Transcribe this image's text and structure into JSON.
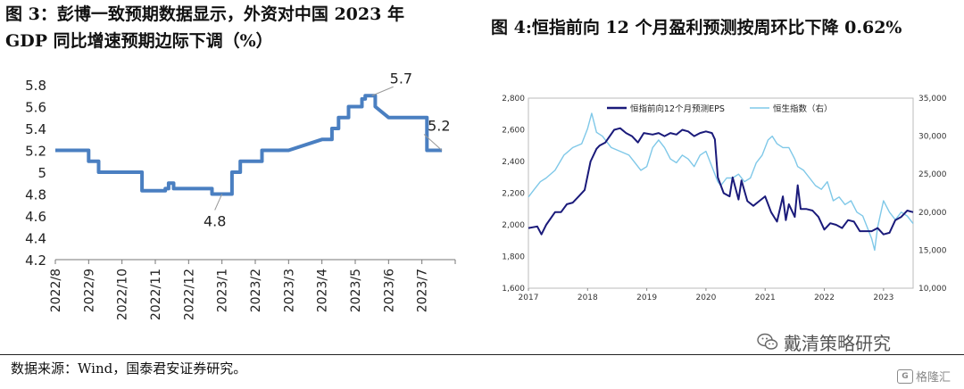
{
  "titles": {
    "fig3_line1": "图 3：彭博一致预期数据显示，外资对中国 2023 年",
    "fig3_line2": "GDP 同比增速预期边际下调（%）",
    "fig4": "图 4:恒指前向 12 个月盈利预测按周环比下降 0.62%"
  },
  "source": "数据来源：Wind，国泰君安证券研究。",
  "watermark": {
    "text": "戴清策略研究",
    "icon": "wechat-icon"
  },
  "logo": {
    "text": "格隆汇",
    "icon": "logo-mark"
  },
  "chart_data": [
    {
      "type": "line",
      "id": "fig3",
      "color": "#4a7fc1",
      "ylim": [
        4.2,
        5.8
      ],
      "yticks": [
        "4.2",
        "4.4",
        "4.6",
        "4.8",
        "5",
        "5.2",
        "5.4",
        "5.6",
        "5.8"
      ],
      "xticks": [
        "2022/8",
        "2022/9",
        "2022/10",
        "2022/11",
        "2022/12",
        "2023/1",
        "2023/2",
        "2023/3",
        "2023/4",
        "2023/5",
        "2023/6",
        "2023/7"
      ],
      "x": [
        0.0,
        1.0,
        1.0,
        1.15,
        1.15,
        1.3,
        1.3,
        1.4,
        1.4,
        2.0,
        2.6,
        2.6,
        3.0,
        3.3,
        3.3,
        3.4,
        3.4,
        3.55,
        3.55,
        3.7,
        3.7,
        4.0,
        4.7,
        4.7,
        4.85,
        4.85,
        5.0,
        5.3,
        5.3,
        5.55,
        5.55,
        6.0,
        6.2,
        6.2,
        7.0,
        8.0,
        8.1,
        8.1,
        8.3,
        8.3,
        8.5,
        8.5,
        8.8,
        8.8,
        9.0,
        9.2,
        9.2,
        9.3,
        9.3,
        9.5,
        9.6,
        9.6,
        10.0,
        11.0,
        11.0,
        11.15,
        11.15,
        11.6
      ],
      "values": [
        5.2,
        5.2,
        5.1,
        5.1,
        5.1,
        5.1,
        5.0,
        5.0,
        5.0,
        5.0,
        5.0,
        4.83,
        4.83,
        4.83,
        4.85,
        4.85,
        4.9,
        4.9,
        4.85,
        4.85,
        4.85,
        4.85,
        4.85,
        4.8,
        4.8,
        4.8,
        4.8,
        4.8,
        5.0,
        5.0,
        5.1,
        5.1,
        5.1,
        5.2,
        5.2,
        5.3,
        5.3,
        5.3,
        5.3,
        5.4,
        5.4,
        5.5,
        5.5,
        5.6,
        5.6,
        5.6,
        5.67,
        5.67,
        5.7,
        5.7,
        5.7,
        5.6,
        5.5,
        5.5,
        5.5,
        5.5,
        5.2,
        5.2
      ],
      "annotations": [
        {
          "label": "5.7",
          "x": 9.5,
          "y": 5.7
        },
        {
          "label": "5.2",
          "x": 11.6,
          "y": 5.2
        },
        {
          "label": "4.8",
          "x": 5.0,
          "y": 4.8
        }
      ]
    },
    {
      "type": "line",
      "id": "fig4",
      "xticks": [
        "2017",
        "2018",
        "2019",
        "2020",
        "2021",
        "2022",
        "2023"
      ],
      "xlim": [
        2017,
        2023.5
      ],
      "y_left": {
        "lim": [
          1600,
          2800
        ],
        "ticks": [
          "1,600",
          "1,800",
          "2,000",
          "2,200",
          "2,400",
          "2,600",
          "2,800"
        ]
      },
      "y_right": {
        "lim": [
          10000,
          35000
        ],
        "ticks": [
          "10,000",
          "15,000",
          "20,000",
          "25,000",
          "30,000",
          "35,000"
        ]
      },
      "series": [
        {
          "name": "恒指前向12个月预测EPS",
          "axis": "left",
          "color": "#1a1a7a",
          "x": [
            2017.0,
            2017.15,
            2017.22,
            2017.3,
            2017.45,
            2017.55,
            2017.65,
            2017.75,
            2017.85,
            2017.95,
            2018.05,
            2018.15,
            2018.2,
            2018.3,
            2018.45,
            2018.55,
            2018.65,
            2018.75,
            2018.85,
            2018.95,
            2019.1,
            2019.2,
            2019.3,
            2019.4,
            2019.5,
            2019.6,
            2019.7,
            2019.8,
            2019.9,
            2020.0,
            2020.1,
            2020.15,
            2020.2,
            2020.25,
            2020.3,
            2020.4,
            2020.45,
            2020.55,
            2020.6,
            2020.7,
            2020.8,
            2020.9,
            2021.0,
            2021.1,
            2021.15,
            2021.2,
            2021.3,
            2021.35,
            2021.4,
            2021.5,
            2021.55,
            2021.6,
            2021.7,
            2021.8,
            2021.9,
            2022.0,
            2022.1,
            2022.2,
            2022.3,
            2022.4,
            2022.5,
            2022.6,
            2022.7,
            2022.8,
            2022.9,
            2023.0,
            2023.1,
            2023.2,
            2023.3,
            2023.4,
            2023.5
          ],
          "values": [
            1980,
            1990,
            1940,
            2000,
            2080,
            2080,
            2130,
            2140,
            2180,
            2220,
            2400,
            2480,
            2500,
            2520,
            2600,
            2610,
            2580,
            2560,
            2520,
            2580,
            2570,
            2580,
            2560,
            2580,
            2570,
            2600,
            2590,
            2560,
            2580,
            2590,
            2580,
            2540,
            2300,
            2250,
            2200,
            2180,
            2300,
            2160,
            2280,
            2150,
            2120,
            2150,
            2180,
            2080,
            2050,
            2020,
            2180,
            2030,
            2130,
            2050,
            2250,
            2100,
            2100,
            2090,
            2050,
            1970,
            2010,
            2000,
            1980,
            2030,
            2020,
            1960,
            1960,
            1960,
            1980,
            1940,
            1950,
            2030,
            2050,
            2090,
            2080
          ]
        },
        {
          "name": "恒生指数（右）",
          "axis": "right",
          "color": "#7fc8e8",
          "x": [
            2017.0,
            2017.1,
            2017.2,
            2017.3,
            2017.45,
            2017.6,
            2017.75,
            2017.9,
            2018.0,
            2018.07,
            2018.15,
            2018.25,
            2018.4,
            2018.55,
            2018.7,
            2018.8,
            2018.9,
            2019.0,
            2019.1,
            2019.2,
            2019.3,
            2019.4,
            2019.5,
            2019.6,
            2019.7,
            2019.8,
            2019.9,
            2020.0,
            2020.1,
            2020.2,
            2020.25,
            2020.35,
            2020.45,
            2020.55,
            2020.65,
            2020.75,
            2020.85,
            2020.95,
            2021.05,
            2021.12,
            2021.2,
            2021.3,
            2021.4,
            2021.5,
            2021.55,
            2021.65,
            2021.75,
            2021.85,
            2021.95,
            2022.05,
            2022.15,
            2022.25,
            2022.35,
            2022.45,
            2022.55,
            2022.65,
            2022.75,
            2022.8,
            2022.85,
            2022.9,
            2023.0,
            2023.1,
            2023.2,
            2023.3,
            2023.4,
            2023.5
          ],
          "values": [
            22000,
            23000,
            24000,
            24500,
            25500,
            27500,
            28500,
            29000,
            31000,
            33000,
            30500,
            30000,
            28500,
            28000,
            27500,
            26500,
            25500,
            26000,
            28500,
            29500,
            28500,
            27000,
            26500,
            27500,
            27000,
            26000,
            27500,
            28000,
            26000,
            24000,
            23500,
            24500,
            24500,
            25000,
            24000,
            24500,
            26500,
            27500,
            29500,
            30000,
            29000,
            28500,
            28500,
            27000,
            26000,
            25500,
            24500,
            23500,
            23000,
            24000,
            21500,
            22000,
            21000,
            21500,
            20000,
            19500,
            17500,
            16500,
            15000,
            18000,
            21500,
            20000,
            19000,
            20000,
            19500,
            18500
          ]
        }
      ]
    }
  ]
}
